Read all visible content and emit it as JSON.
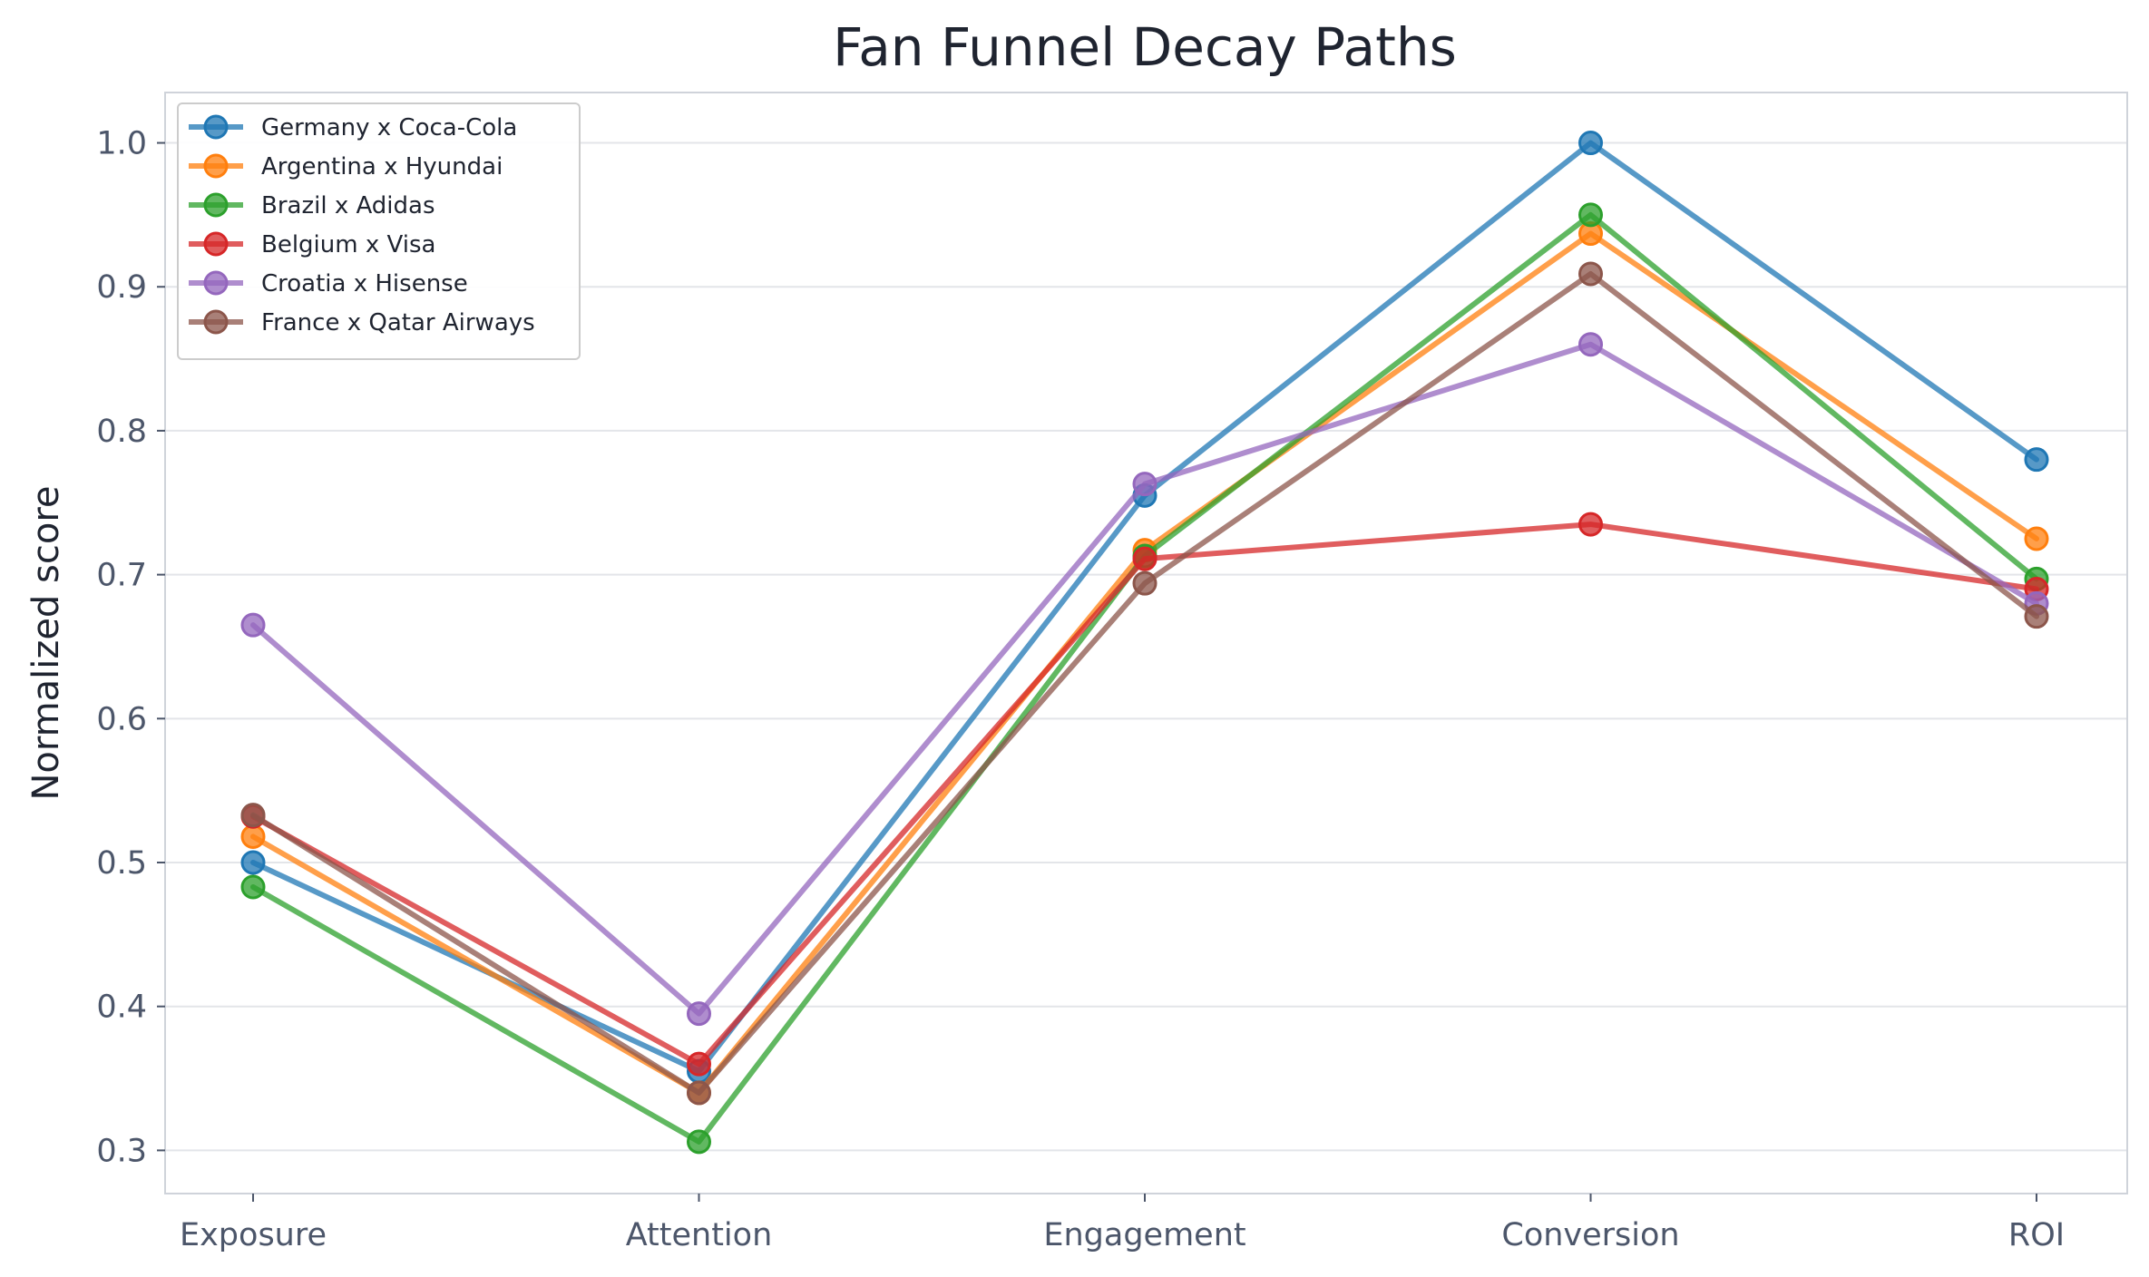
{
  "chart_data": {
    "type": "line",
    "title": "Fan Funnel Decay Paths",
    "xlabel": "",
    "ylabel": "Normalized score",
    "categories": [
      "Exposure",
      "Attention",
      "Engagement",
      "Conversion",
      "ROI"
    ],
    "ylim": [
      0.27,
      1.035
    ],
    "yticks": [
      0.3,
      0.4,
      0.5,
      0.6,
      0.7,
      0.8,
      0.9,
      1.0
    ],
    "ytick_labels": [
      "0.3",
      "0.4",
      "0.5",
      "0.6",
      "0.7",
      "0.8",
      "0.9",
      "1.0"
    ],
    "grid": "horizontal",
    "legend_position": "top-left",
    "series": [
      {
        "name": "Germany x Coca-Cola",
        "color": "#1f77b4",
        "values": [
          0.5,
          0.355,
          0.755,
          1.0,
          0.78
        ]
      },
      {
        "name": "Argentina x Hyundai",
        "color": "#ff7f0e",
        "values": [
          0.518,
          0.34,
          0.717,
          0.937,
          0.725
        ]
      },
      {
        "name": "Brazil x Adidas",
        "color": "#2ca02c",
        "values": [
          0.483,
          0.306,
          0.713,
          0.95,
          0.697
        ]
      },
      {
        "name": "Belgium x Visa",
        "color": "#d62728",
        "values": [
          0.532,
          0.36,
          0.711,
          0.735,
          0.69
        ]
      },
      {
        "name": "Croatia x Hisense",
        "color": "#9467bd",
        "values": [
          0.665,
          0.395,
          0.763,
          0.86,
          0.68
        ]
      },
      {
        "name": "France x Qatar Airways",
        "color": "#8c564b",
        "values": [
          0.533,
          0.34,
          0.694,
          0.909,
          0.671
        ]
      }
    ]
  }
}
